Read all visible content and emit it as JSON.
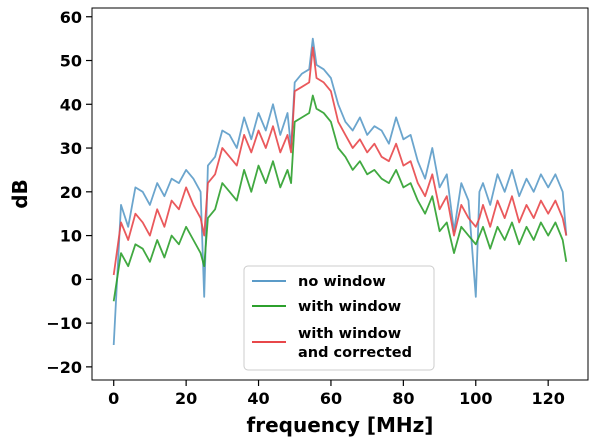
{
  "chart_data": {
    "type": "line",
    "title": "",
    "xlabel": "frequency [MHz]",
    "ylabel": "dB",
    "xlim": [
      -6,
      131
    ],
    "ylim": [
      -23,
      62
    ],
    "xticks": [
      0,
      20,
      40,
      60,
      80,
      100,
      120
    ],
    "yticks": [
      -20,
      -10,
      0,
      10,
      20,
      30,
      40,
      50,
      60
    ],
    "grid": false,
    "legend_position": "lower-center",
    "x": [
      0,
      2,
      4,
      6,
      8,
      10,
      12,
      14,
      16,
      18,
      20,
      22,
      24,
      25,
      26,
      28,
      30,
      32,
      34,
      36,
      38,
      40,
      42,
      44,
      46,
      48,
      49,
      50,
      52,
      54,
      55,
      56,
      58,
      60,
      62,
      64,
      66,
      68,
      70,
      72,
      74,
      76,
      78,
      80,
      82,
      84,
      86,
      88,
      90,
      92,
      94,
      96,
      98,
      100,
      101,
      102,
      104,
      106,
      108,
      110,
      112,
      114,
      116,
      118,
      120,
      122,
      124,
      125
    ],
    "series": [
      {
        "name": "no window",
        "color": "#5b9bc8",
        "values": [
          -15,
          17,
          12,
          21,
          20,
          17,
          22,
          19,
          23,
          22,
          25,
          23,
          20,
          -4,
          26,
          28,
          34,
          33,
          30,
          37,
          32,
          38,
          34,
          40,
          33,
          38,
          30,
          45,
          47,
          48,
          55,
          49,
          48,
          46,
          40,
          36,
          34,
          37,
          33,
          35,
          34,
          31,
          37,
          32,
          33,
          27,
          23,
          30,
          21,
          24,
          11,
          22,
          18,
          -4,
          20,
          22,
          17,
          24,
          20,
          25,
          19,
          23,
          20,
          24,
          21,
          24,
          20,
          10
        ]
      },
      {
        "name": "with window",
        "color": "#2ca02c",
        "values": [
          -5,
          6,
          3,
          8,
          7,
          4,
          9,
          5,
          10,
          8,
          12,
          9,
          6,
          3,
          14,
          16,
          22,
          20,
          18,
          25,
          20,
          26,
          22,
          27,
          21,
          25,
          22,
          36,
          37,
          38,
          42,
          39,
          38,
          36,
          30,
          28,
          25,
          27,
          24,
          25,
          23,
          22,
          25,
          21,
          22,
          18,
          15,
          19,
          11,
          13,
          6,
          12,
          10,
          8,
          10,
          12,
          7,
          12,
          9,
          13,
          8,
          12,
          9,
          13,
          10,
          13,
          9,
          4
        ]
      },
      {
        "name": "with window\nand corrected",
        "color": "#e8474a",
        "values": [
          1,
          13,
          9,
          15,
          13,
          10,
          16,
          12,
          18,
          16,
          21,
          17,
          14,
          10,
          22,
          24,
          30,
          28,
          26,
          33,
          29,
          34,
          30,
          35,
          29,
          33,
          29,
          43,
          44,
          45,
          53,
          46,
          45,
          43,
          36,
          33,
          30,
          32,
          29,
          31,
          28,
          27,
          31,
          26,
          27,
          22,
          19,
          24,
          16,
          19,
          10,
          17,
          14,
          12,
          14,
          17,
          12,
          18,
          14,
          19,
          13,
          17,
          14,
          18,
          15,
          18,
          14,
          10
        ]
      }
    ]
  }
}
